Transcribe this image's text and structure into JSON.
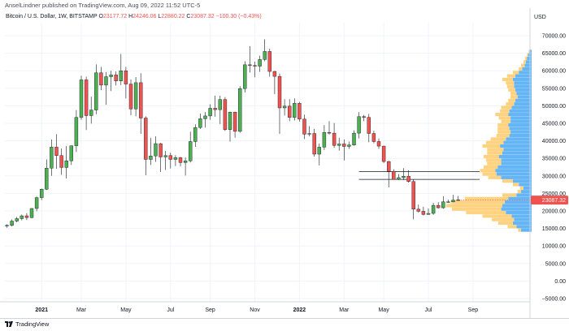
{
  "header": {
    "publisher": "AnselLindner published on TradingView.com, Aug 09, 2022 11:52 UTC-5",
    "symbol": "Bitcoin / U.S. Dollar, 1W, BITSTAMP",
    "open_label": "O",
    "open_value": "23177.72",
    "high_label": "H",
    "high_value": "24246.06",
    "low_label": "L",
    "low_value": "22880.22",
    "close_label": "C",
    "close_value": "23087.32",
    "change": "−100.30 (−0.43%)"
  },
  "footer": {
    "brand": "TradingView",
    "logo_icon": "tradingview-logo-icon"
  },
  "colors": {
    "up": "#4caf50",
    "down": "#ef5350",
    "vp_up": "#64b5f6",
    "vp_down": "#ffd27f",
    "price_tag": "#ef5350"
  },
  "chart_data": {
    "type": "candlestick",
    "title": "Bitcoin / U.S. Dollar, 1W, BITSTAMP",
    "currency_label": "USD",
    "last_price": 23087.32,
    "last_price_label": "23087.32",
    "ylim": [
      -7000,
      72000
    ],
    "yticks": [
      -5000,
      0,
      5000,
      10000,
      15000,
      20000,
      25000,
      30000,
      35000,
      40000,
      45000,
      50000,
      55000,
      60000,
      65000,
      70000
    ],
    "ytick_labels": [
      "−5000.00",
      "0.00",
      "5000.00",
      "10000.00",
      "15000.00",
      "20000.00",
      "25000.00",
      "30000.00",
      "35000.00",
      "40000.00",
      "45000.00",
      "50000.00",
      "55000.00",
      "60000.00",
      "65000.00",
      "70000.00"
    ],
    "xticks": [
      {
        "label": "2021",
        "week": 7,
        "bold": true
      },
      {
        "label": "Mar",
        "week": 15
      },
      {
        "label": "May",
        "week": 24
      },
      {
        "label": "Jul",
        "week": 33
      },
      {
        "label": "Sep",
        "week": 41
      },
      {
        "label": "Nov",
        "week": 50
      },
      {
        "label": "2022",
        "week": 59,
        "bold": true
      },
      {
        "label": "Mar",
        "week": 68
      },
      {
        "label": "May",
        "week": 76
      },
      {
        "label": "Jul",
        "week": 85
      },
      {
        "label": "Sep",
        "week": 94
      }
    ],
    "candles": [
      {
        "o": 15700,
        "h": 16200,
        "l": 15200,
        "c": 15900
      },
      {
        "o": 15900,
        "h": 17600,
        "l": 15600,
        "c": 17100
      },
      {
        "o": 17100,
        "h": 18300,
        "l": 16800,
        "c": 17800
      },
      {
        "o": 17800,
        "h": 19000,
        "l": 17300,
        "c": 18600
      },
      {
        "o": 18600,
        "h": 19400,
        "l": 17400,
        "c": 18100
      },
      {
        "o": 18100,
        "h": 20800,
        "l": 17900,
        "c": 20700
      },
      {
        "o": 20700,
        "h": 24100,
        "l": 19900,
        "c": 23800
      },
      {
        "o": 23800,
        "h": 26400,
        "l": 23100,
        "c": 26200
      },
      {
        "o": 26200,
        "h": 34700,
        "l": 26000,
        "c": 32200
      },
      {
        "o": 32200,
        "h": 40400,
        "l": 30000,
        "c": 38200
      },
      {
        "o": 38200,
        "h": 41900,
        "l": 32000,
        "c": 35800
      },
      {
        "o": 35800,
        "h": 37800,
        "l": 30300,
        "c": 32400
      },
      {
        "o": 32400,
        "h": 38500,
        "l": 29300,
        "c": 34300
      },
      {
        "o": 34300,
        "h": 38700,
        "l": 33100,
        "c": 38600
      },
      {
        "o": 38600,
        "h": 48800,
        "l": 36800,
        "c": 46700
      },
      {
        "o": 46700,
        "h": 58600,
        "l": 46000,
        "c": 57400
      },
      {
        "o": 57400,
        "h": 58300,
        "l": 43100,
        "c": 47200
      },
      {
        "o": 47200,
        "h": 52600,
        "l": 44900,
        "c": 48800
      },
      {
        "o": 48800,
        "h": 61800,
        "l": 47600,
        "c": 59400
      },
      {
        "o": 59400,
        "h": 61100,
        "l": 54500,
        "c": 55900
      },
      {
        "o": 55900,
        "h": 59600,
        "l": 50300,
        "c": 58300
      },
      {
        "o": 58300,
        "h": 60000,
        "l": 54200,
        "c": 58800
      },
      {
        "o": 58800,
        "h": 59800,
        "l": 55800,
        "c": 57100
      },
      {
        "o": 57100,
        "h": 64800,
        "l": 55900,
        "c": 60000
      },
      {
        "o": 60000,
        "h": 61100,
        "l": 52100,
        "c": 56200
      },
      {
        "o": 56200,
        "h": 57500,
        "l": 47300,
        "c": 49100
      },
      {
        "o": 49100,
        "h": 58200,
        "l": 47000,
        "c": 56600
      },
      {
        "o": 56600,
        "h": 59300,
        "l": 42000,
        "c": 46500
      },
      {
        "o": 46500,
        "h": 47000,
        "l": 30200,
        "c": 34700
      },
      {
        "o": 34700,
        "h": 40800,
        "l": 33100,
        "c": 35700
      },
      {
        "o": 35700,
        "h": 41300,
        "l": 34000,
        "c": 39200
      },
      {
        "o": 39200,
        "h": 39400,
        "l": 31100,
        "c": 35400
      },
      {
        "o": 35400,
        "h": 37100,
        "l": 31700,
        "c": 35800
      },
      {
        "o": 35800,
        "h": 36600,
        "l": 32100,
        "c": 34700
      },
      {
        "o": 34700,
        "h": 35900,
        "l": 32800,
        "c": 35200
      },
      {
        "o": 35200,
        "h": 35400,
        "l": 32700,
        "c": 33800
      },
      {
        "o": 33800,
        "h": 35300,
        "l": 30100,
        "c": 34300
      },
      {
        "o": 34300,
        "h": 42600,
        "l": 33800,
        "c": 39800
      },
      {
        "o": 39800,
        "h": 44700,
        "l": 38300,
        "c": 43800
      },
      {
        "o": 43800,
        "h": 47800,
        "l": 43400,
        "c": 46300
      },
      {
        "o": 46300,
        "h": 48200,
        "l": 43800,
        "c": 47100
      },
      {
        "o": 47100,
        "h": 50400,
        "l": 46000,
        "c": 49300
      },
      {
        "o": 49300,
        "h": 52900,
        "l": 46900,
        "c": 48900
      },
      {
        "o": 48900,
        "h": 52900,
        "l": 44800,
        "c": 51800
      },
      {
        "o": 51800,
        "h": 52500,
        "l": 42800,
        "c": 43200
      },
      {
        "o": 43200,
        "h": 48300,
        "l": 39800,
        "c": 48200
      },
      {
        "o": 48200,
        "h": 48300,
        "l": 40900,
        "c": 42700
      },
      {
        "o": 42700,
        "h": 55600,
        "l": 42300,
        "c": 54900
      },
      {
        "o": 54900,
        "h": 62700,
        "l": 53800,
        "c": 61700
      },
      {
        "o": 61700,
        "h": 67000,
        "l": 59500,
        "c": 61500
      },
      {
        "o": 61500,
        "h": 62600,
        "l": 58100,
        "c": 61300
      },
      {
        "o": 61300,
        "h": 64300,
        "l": 59700,
        "c": 63200
      },
      {
        "o": 63200,
        "h": 69000,
        "l": 62700,
        "c": 65500
      },
      {
        "o": 65500,
        "h": 66300,
        "l": 58300,
        "c": 59800
      },
      {
        "o": 59800,
        "h": 60000,
        "l": 53300,
        "c": 58400
      },
      {
        "o": 58400,
        "h": 59200,
        "l": 42000,
        "c": 49400
      },
      {
        "o": 49400,
        "h": 51900,
        "l": 47200,
        "c": 49900
      },
      {
        "o": 49900,
        "h": 51900,
        "l": 45600,
        "c": 46700
      },
      {
        "o": 46700,
        "h": 52100,
        "l": 45800,
        "c": 50700
      },
      {
        "o": 50700,
        "h": 51100,
        "l": 45500,
        "c": 46200
      },
      {
        "o": 46200,
        "h": 47500,
        "l": 40500,
        "c": 41900
      },
      {
        "o": 41900,
        "h": 44200,
        "l": 41300,
        "c": 42100
      },
      {
        "o": 42100,
        "h": 43400,
        "l": 35500,
        "c": 36200
      },
      {
        "o": 36200,
        "h": 39200,
        "l": 33000,
        "c": 38200
      },
      {
        "o": 38200,
        "h": 44500,
        "l": 37400,
        "c": 42400
      },
      {
        "o": 42400,
        "h": 45600,
        "l": 41800,
        "c": 42200
      },
      {
        "o": 42200,
        "h": 45100,
        "l": 38000,
        "c": 38700
      },
      {
        "o": 38700,
        "h": 40900,
        "l": 37200,
        "c": 39100
      },
      {
        "o": 39100,
        "h": 40400,
        "l": 34400,
        "c": 38400
      },
      {
        "o": 38400,
        "h": 39800,
        "l": 37700,
        "c": 38800
      },
      {
        "o": 38800,
        "h": 43000,
        "l": 38600,
        "c": 42200
      },
      {
        "o": 42200,
        "h": 48200,
        "l": 40700,
        "c": 46900
      },
      {
        "o": 46900,
        "h": 47400,
        "l": 45600,
        "c": 46700
      },
      {
        "o": 46700,
        "h": 47700,
        "l": 39600,
        "c": 42100
      },
      {
        "o": 42100,
        "h": 42900,
        "l": 39300,
        "c": 39800
      },
      {
        "o": 39800,
        "h": 40700,
        "l": 37700,
        "c": 38500
      },
      {
        "o": 38500,
        "h": 38600,
        "l": 33700,
        "c": 34100
      },
      {
        "o": 34100,
        "h": 34300,
        "l": 26700,
        "c": 31300
      },
      {
        "o": 31300,
        "h": 31900,
        "l": 28900,
        "c": 29000
      },
      {
        "o": 29000,
        "h": 30500,
        "l": 28800,
        "c": 29500
      },
      {
        "o": 29500,
        "h": 32200,
        "l": 28800,
        "c": 29900
      },
      {
        "o": 29900,
        "h": 31600,
        "l": 28100,
        "c": 28400
      },
      {
        "o": 28400,
        "h": 28900,
        "l": 17600,
        "c": 20500
      },
      {
        "o": 20500,
        "h": 21800,
        "l": 19500,
        "c": 19900
      },
      {
        "o": 19900,
        "h": 21200,
        "l": 18700,
        "c": 19000
      },
      {
        "o": 19000,
        "h": 20700,
        "l": 18900,
        "c": 19300
      },
      {
        "o": 19300,
        "h": 22300,
        "l": 18900,
        "c": 21600
      },
      {
        "o": 21600,
        "h": 22500,
        "l": 20700,
        "c": 20900
      },
      {
        "o": 20900,
        "h": 24200,
        "l": 20600,
        "c": 22600
      },
      {
        "o": 22600,
        "h": 23200,
        "l": 22300,
        "c": 22600
      },
      {
        "o": 22600,
        "h": 24600,
        "l": 22500,
        "c": 23100
      },
      {
        "o": 23177.72,
        "h": 24246.06,
        "l": 22880.22,
        "c": 23087.32
      }
    ],
    "horizontal_lines": [
      {
        "price": 31200,
        "from_week": 71
      },
      {
        "price": 29000,
        "from_week": 71
      }
    ],
    "volume_profile": {
      "bin_size": 1000,
      "rows": [
        {
          "price": 14500,
          "up": 18,
          "down": 5
        },
        {
          "price": 15500,
          "up": 26,
          "down": 15
        },
        {
          "price": 16500,
          "up": 32,
          "down": 25
        },
        {
          "price": 17500,
          "up": 30,
          "down": 38
        },
        {
          "price": 18500,
          "up": 34,
          "down": 50
        },
        {
          "price": 19500,
          "up": 44,
          "down": 68
        },
        {
          "price": 20500,
          "up": 52,
          "down": 84
        },
        {
          "price": 21500,
          "up": 50,
          "down": 96
        },
        {
          "price": 22500,
          "up": 46,
          "down": 92
        },
        {
          "price": 23500,
          "up": 40,
          "down": 74
        },
        {
          "price": 24500,
          "up": 26,
          "down": 24
        },
        {
          "price": 25500,
          "up": 18,
          "down": 6
        },
        {
          "price": 26500,
          "up": 14,
          "down": 6
        },
        {
          "price": 27500,
          "up": 22,
          "down": 10
        },
        {
          "price": 28500,
          "up": 32,
          "down": 18
        },
        {
          "price": 29500,
          "up": 52,
          "down": 22
        },
        {
          "price": 30500,
          "up": 60,
          "down": 24
        },
        {
          "price": 31500,
          "up": 62,
          "down": 26
        },
        {
          "price": 32500,
          "up": 58,
          "down": 24
        },
        {
          "price": 33500,
          "up": 52,
          "down": 24
        },
        {
          "price": 34500,
          "up": 52,
          "down": 26
        },
        {
          "price": 35500,
          "up": 56,
          "down": 26
        },
        {
          "price": 36500,
          "up": 50,
          "down": 26
        },
        {
          "price": 37500,
          "up": 48,
          "down": 28
        },
        {
          "price": 38500,
          "up": 54,
          "down": 30
        },
        {
          "price": 39500,
          "up": 48,
          "down": 30
        },
        {
          "price": 40500,
          "up": 44,
          "down": 26
        },
        {
          "price": 41500,
          "up": 38,
          "down": 22
        },
        {
          "price": 42500,
          "up": 36,
          "down": 22
        },
        {
          "price": 43500,
          "up": 38,
          "down": 20
        },
        {
          "price": 44500,
          "up": 40,
          "down": 18
        },
        {
          "price": 45500,
          "up": 36,
          "down": 16
        },
        {
          "price": 46500,
          "up": 36,
          "down": 20
        },
        {
          "price": 47500,
          "up": 40,
          "down": 22
        },
        {
          "price": 48500,
          "up": 38,
          "down": 16
        },
        {
          "price": 49500,
          "up": 34,
          "down": 18
        },
        {
          "price": 50500,
          "up": 30,
          "down": 14
        },
        {
          "price": 51500,
          "up": 28,
          "down": 12
        },
        {
          "price": 52500,
          "up": 24,
          "down": 12
        },
        {
          "price": 53500,
          "up": 26,
          "down": 10
        },
        {
          "price": 54500,
          "up": 28,
          "down": 12
        },
        {
          "price": 55500,
          "up": 30,
          "down": 12
        },
        {
          "price": 56500,
          "up": 30,
          "down": 14
        },
        {
          "price": 57500,
          "up": 32,
          "down": 18
        },
        {
          "price": 58500,
          "up": 28,
          "down": 14
        },
        {
          "price": 59500,
          "up": 22,
          "down": 10
        },
        {
          "price": 60500,
          "up": 16,
          "down": 6
        },
        {
          "price": 61500,
          "up": 12,
          "down": 6
        },
        {
          "price": 62500,
          "up": 10,
          "down": 4
        },
        {
          "price": 63500,
          "up": 8,
          "down": 3
        },
        {
          "price": 64500,
          "up": 6,
          "down": 2
        },
        {
          "price": 65500,
          "up": 4,
          "down": 1
        }
      ]
    }
  }
}
